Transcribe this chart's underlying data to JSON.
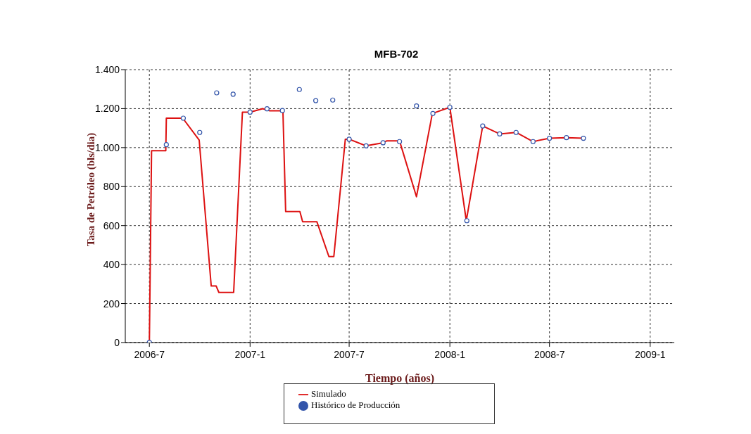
{
  "chart_data": {
    "type": "line",
    "title": "MFB-702",
    "xlabel": "Tiempo (años)",
    "ylabel": "Tasa de Petróleo (bls/dia)",
    "xlim": [
      "2006-05-18",
      "2009-02-14"
    ],
    "xticks": [
      {
        "value": "2006-07",
        "label": "2006-7"
      },
      {
        "value": "2007-01",
        "label": "2007-1"
      },
      {
        "value": "2007-07",
        "label": "2007-7"
      },
      {
        "value": "2008-01",
        "label": "2008-1"
      },
      {
        "value": "2008-07",
        "label": "2008-7"
      },
      {
        "value": "2009-01",
        "label": "2009-1"
      }
    ],
    "ylim": [
      0,
      1400
    ],
    "yticks": [
      0,
      200,
      400,
      600,
      800,
      {
        "value": 1000,
        "label": "1.000"
      },
      {
        "value": 1200,
        "label": "1.200"
      },
      {
        "value": 1400,
        "label": "1.400"
      }
    ],
    "grid": true,
    "legend": "bottom",
    "series": [
      {
        "name": "Simulado",
        "color": "#dd1111",
        "marker": "none",
        "line_style": "solid",
        "x": [
          "2006-07-01",
          "2006-07-05",
          "2006-07-31",
          "2006-08-01",
          "2006-08-31",
          "2006-09-30",
          "2006-10-22",
          "2006-10-31",
          "2006-11-05",
          "2006-12-02",
          "2006-12-18",
          "2007-01-01",
          "2007-01-24",
          "2007-02-06",
          "2007-03-02",
          "2007-03-07",
          "2007-04-02",
          "2007-04-07",
          "2007-05-03",
          "2007-05-25",
          "2007-06-03",
          "2007-06-24",
          "2007-07-01",
          "2007-08-01",
          "2007-09-01",
          "2007-09-08",
          "2007-10-01",
          "2007-11-01",
          "2007-11-30",
          "2008-01-01",
          "2008-01-31",
          "2008-03-01",
          "2008-04-01",
          "2008-05-01",
          "2008-06-01",
          "2008-07-01",
          "2008-08-01",
          "2008-09-01"
        ],
        "values": [
          0,
          984,
          984,
          1151,
          1151,
          1039,
          290,
          290,
          257,
          257,
          1182,
          1182,
          1200,
          1189,
          1189,
          672,
          672,
          620,
          620,
          441,
          441,
          1043,
          1043,
          1009,
          1025,
          1035,
          1035,
          748,
          1175,
          1207,
          625,
          1111,
          1070,
          1078,
          1031,
          1048,
          1051,
          1048
        ]
      },
      {
        "name": "Histórico de Producción",
        "type": "scatter",
        "color": "#3355aa",
        "marker": "circle",
        "x": [
          "2006-07-01",
          "2006-08-01",
          "2006-09-01",
          "2006-10-01",
          "2006-11-01",
          "2006-12-01",
          "2007-01-01",
          "2007-02-01",
          "2007-03-01",
          "2007-04-01",
          "2007-05-01",
          "2007-06-01",
          "2007-07-01",
          "2007-08-01",
          "2007-09-01",
          "2007-10-01",
          "2007-11-01",
          "2007-12-01",
          "2008-01-01",
          "2008-02-01",
          "2008-03-01",
          "2008-04-01",
          "2008-05-01",
          "2008-06-01",
          "2008-07-01",
          "2008-08-01",
          "2008-09-01"
        ],
        "values": [
          0,
          1015,
          1151,
          1078,
          1281,
          1274,
          1182,
          1199,
          1190,
          1298,
          1241,
          1244,
          1043,
          1009,
          1025,
          1031,
          1214,
          1175,
          1207,
          625,
          1111,
          1070,
          1078,
          1031,
          1048,
          1051,
          1048
        ]
      }
    ]
  }
}
